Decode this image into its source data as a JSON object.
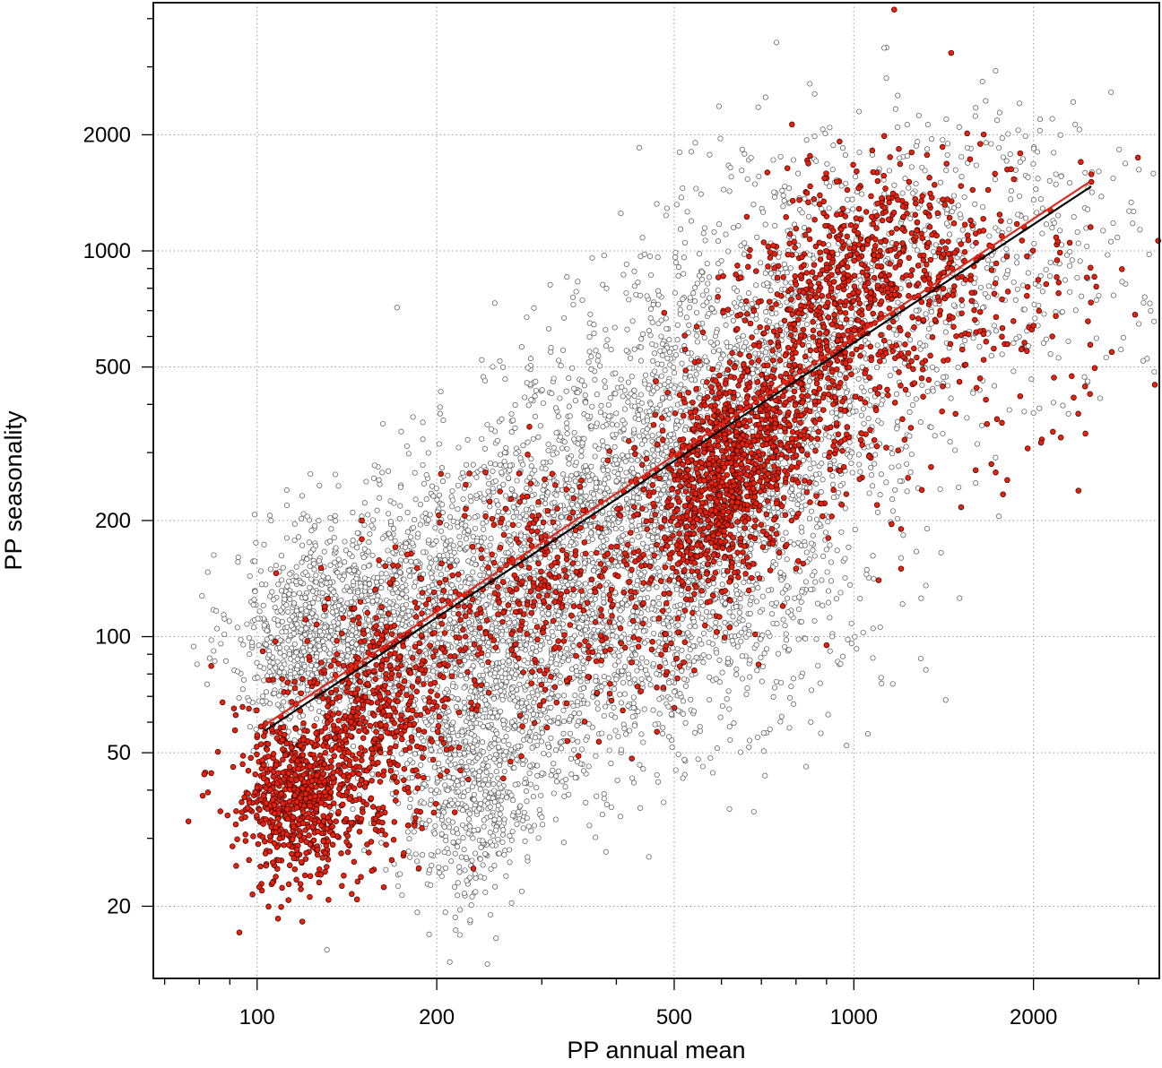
{
  "chart_data": {
    "type": "scatter",
    "title": "",
    "xlabel": "PP annual mean",
    "ylabel": "PP seasonality",
    "xscale": "log",
    "yscale": "log",
    "xlim": [
      67,
      3250
    ],
    "ylim": [
      13,
      4400
    ],
    "grid": true,
    "legend": "none",
    "xticks": [
      {
        "value": 100,
        "label": "100"
      },
      {
        "value": 200,
        "label": "200"
      },
      {
        "value": 500,
        "label": "500"
      },
      {
        "value": 1000,
        "label": "1000"
      },
      {
        "value": 2000,
        "label": "2000"
      }
    ],
    "yticks": [
      {
        "value": 20,
        "label": "20"
      },
      {
        "value": 50,
        "label": "50"
      },
      {
        "value": 100,
        "label": "100"
      },
      {
        "value": 200,
        "label": "200"
      },
      {
        "value": 500,
        "label": "500"
      },
      {
        "value": 1000,
        "label": "1000"
      },
      {
        "value": 2000,
        "label": "2000"
      }
    ],
    "series": [
      {
        "style": "open-circle",
        "color": "#ffffff",
        "edge_color": "#555555",
        "clusters": [
          {
            "x": 125,
            "y": 95,
            "sx": 0.07,
            "sy": 0.12,
            "n": 650
          },
          {
            "x": 165,
            "y": 120,
            "sx": 0.1,
            "sy": 0.14,
            "n": 650
          },
          {
            "x": 225,
            "y": 38,
            "sx": 0.06,
            "sy": 0.14,
            "n": 450
          },
          {
            "x": 250,
            "y": 75,
            "sx": 0.12,
            "sy": 0.2,
            "n": 900
          },
          {
            "x": 320,
            "y": 140,
            "sx": 0.15,
            "sy": 0.2,
            "n": 1300
          },
          {
            "x": 480,
            "y": 230,
            "sx": 0.15,
            "sy": 0.2,
            "n": 1300
          },
          {
            "x": 560,
            "y": 120,
            "sx": 0.13,
            "sy": 0.2,
            "n": 500
          },
          {
            "x": 700,
            "y": 450,
            "sx": 0.15,
            "sy": 0.2,
            "n": 1000
          },
          {
            "x": 1300,
            "y": 1000,
            "sx": 0.2,
            "sy": 0.18,
            "n": 650
          }
        ],
        "sparse_points": [
          [
            1600,
            2350
          ],
          [
            2150,
            2200
          ],
          [
            2050,
            2050
          ],
          [
            1350,
            1950
          ],
          [
            1250,
            1650
          ],
          [
            1750,
            1850
          ],
          [
            1900,
            1700
          ],
          [
            1550,
            1850
          ],
          [
            2000,
            380
          ],
          [
            1600,
            250
          ],
          [
            1750,
            205
          ],
          [
            1200,
            160
          ],
          [
            1400,
            165
          ],
          [
            1050,
            145
          ],
          [
            950,
            130
          ],
          [
            1320,
            82
          ],
          [
            950,
            85
          ],
          [
            920,
            100
          ],
          [
            780,
            58
          ],
          [
            520,
            48
          ],
          [
            470,
            42
          ],
          [
            350,
            51
          ],
          [
            300,
            34
          ],
          [
            265,
            26
          ],
          [
            200,
            40
          ],
          [
            490,
            55
          ],
          [
            860,
            1330
          ],
          [
            800,
            980
          ],
          [
            1100,
            1600
          ],
          [
            2300,
            1500
          ],
          [
            1950,
            620
          ],
          [
            2100,
            590
          ]
        ]
      },
      {
        "style": "filled-circle",
        "color": "#e8210d",
        "edge_color": "#3a0500",
        "clusters": [
          {
            "x": 115,
            "y": 36,
            "sx": 0.05,
            "sy": 0.1,
            "n": 520
          },
          {
            "x": 135,
            "y": 48,
            "sx": 0.08,
            "sy": 0.13,
            "n": 450
          },
          {
            "x": 165,
            "y": 75,
            "sx": 0.06,
            "sy": 0.12,
            "n": 260
          },
          {
            "x": 270,
            "y": 115,
            "sx": 0.14,
            "sy": 0.16,
            "n": 280
          },
          {
            "x": 360,
            "y": 145,
            "sx": 0.13,
            "sy": 0.18,
            "n": 220
          },
          {
            "x": 570,
            "y": 210,
            "sx": 0.05,
            "sy": 0.11,
            "n": 470
          },
          {
            "x": 640,
            "y": 310,
            "sx": 0.06,
            "sy": 0.1,
            "n": 430
          },
          {
            "x": 820,
            "y": 430,
            "sx": 0.09,
            "sy": 0.14,
            "n": 300
          },
          {
            "x": 920,
            "y": 700,
            "sx": 0.07,
            "sy": 0.12,
            "n": 260
          },
          {
            "x": 1150,
            "y": 1000,
            "sx": 0.09,
            "sy": 0.12,
            "n": 330
          },
          {
            "x": 1500,
            "y": 700,
            "sx": 0.16,
            "sy": 0.2,
            "n": 220
          }
        ],
        "sparse_points": [
          [
            2500,
            1580
          ],
          [
            2500,
            1510
          ],
          [
            2400,
            1700
          ],
          [
            2300,
            1050
          ],
          [
            2150,
            600
          ],
          [
            2100,
            820
          ],
          [
            2000,
            640
          ],
          [
            1100,
            140
          ],
          [
            1200,
            150
          ],
          [
            900,
            95
          ],
          [
            1300,
            240
          ],
          [
            1200,
            190
          ],
          [
            1600,
            270
          ],
          [
            1700,
            280
          ],
          [
            1900,
            420
          ],
          [
            1950,
            550
          ],
          [
            1250,
            1800
          ],
          [
            1150,
            1750
          ],
          [
            800,
            150
          ],
          [
            760,
            120
          ]
        ]
      }
    ],
    "fit_lines": [
      {
        "color": "#000000",
        "x": [
          103,
          2500
        ],
        "y": [
          57,
          1470
        ]
      },
      {
        "color": "#e0271b",
        "x": [
          103,
          2500
        ],
        "y": [
          59,
          1520
        ]
      }
    ]
  }
}
